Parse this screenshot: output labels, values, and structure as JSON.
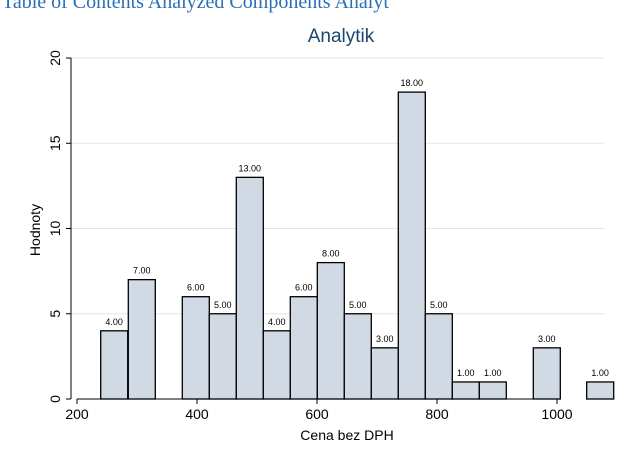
{
  "banner": {
    "clipped_text": "Table of Contents Analyzed Components Analyt"
  },
  "chart_data": {
    "type": "bar",
    "title": "Analytik",
    "xlabel": "Cena bez DPH",
    "ylabel": "Hodnoty",
    "xlim": [
      190,
      1080
    ],
    "ylim": [
      0,
      20
    ],
    "xticks": [
      200,
      400,
      600,
      800,
      1000
    ],
    "yticks": [
      0,
      5,
      10,
      15,
      20
    ],
    "bin_width": 45,
    "grid": true,
    "bar_color": "#d0d9e4",
    "title_color": "#1a476f",
    "bars": [
      {
        "x": 262,
        "value": 4,
        "label": "4.00"
      },
      {
        "x": 308,
        "value": 7,
        "label": "7.00"
      },
      {
        "x": 398,
        "value": 6,
        "label": "6.00"
      },
      {
        "x": 443,
        "value": 5,
        "label": "5.00"
      },
      {
        "x": 488,
        "value": 13,
        "label": "13.00"
      },
      {
        "x": 533,
        "value": 4,
        "label": "4.00"
      },
      {
        "x": 578,
        "value": 6,
        "label": "6.00"
      },
      {
        "x": 623,
        "value": 8,
        "label": "8.00"
      },
      {
        "x": 668,
        "value": 5,
        "label": "5.00"
      },
      {
        "x": 713,
        "value": 3,
        "label": "3.00"
      },
      {
        "x": 758,
        "value": 18,
        "label": "18.00"
      },
      {
        "x": 803,
        "value": 5,
        "label": "5.00"
      },
      {
        "x": 848,
        "value": 1,
        "label": "1.00"
      },
      {
        "x": 893,
        "value": 1,
        "label": "1.00"
      },
      {
        "x": 983,
        "value": 3,
        "label": "3.00"
      },
      {
        "x": 1072,
        "value": 1,
        "label": "1.00"
      }
    ]
  }
}
